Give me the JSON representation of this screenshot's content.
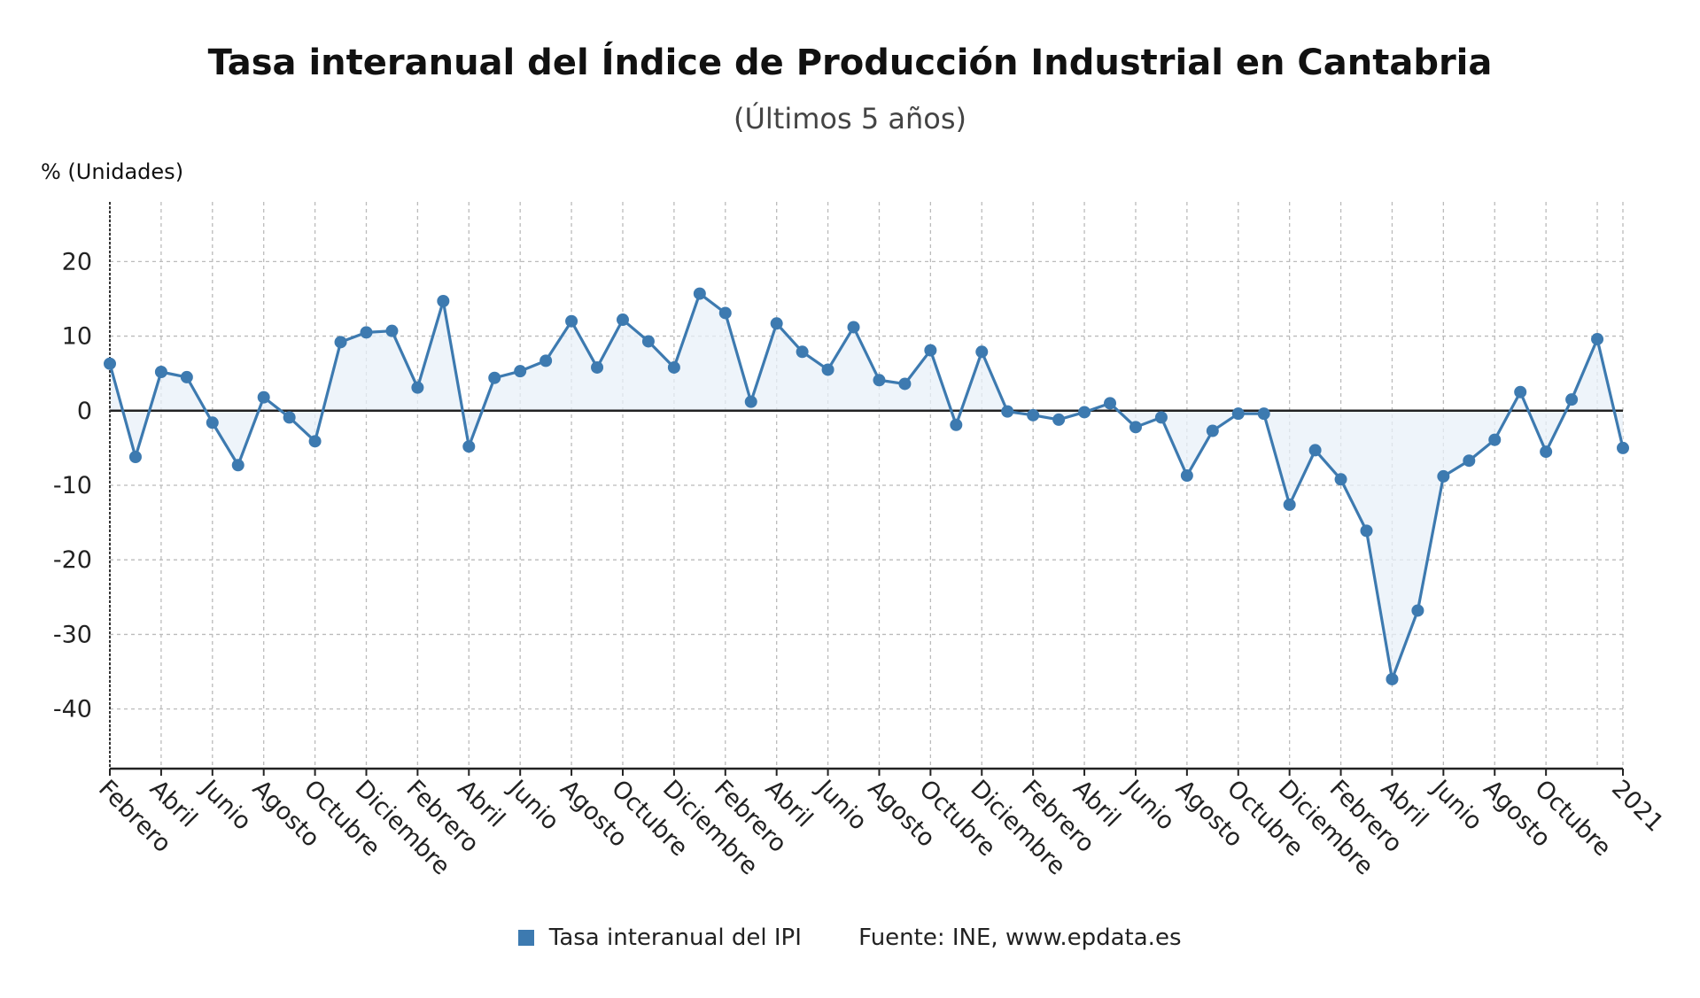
{
  "title": "Tasa interanual del Índice de Producción Industrial en Cantabria",
  "subtitle": "(Últimos 5 años)",
  "unit_label": "% (Unidades)",
  "legend": {
    "series_label": "Tasa interanual del IPI",
    "source_label": "Fuente: INE, www.epdata.es"
  },
  "colors": {
    "series": "#3d7ab0",
    "fill": "#e8f0f8",
    "zero_line": "#222222",
    "grid": "#bbbbbb"
  },
  "chart_data": {
    "type": "line",
    "title": "Tasa interanual del Índice de Producción Industrial en Cantabria",
    "subtitle": "(Últimos 5 años)",
    "ylabel": "% (Unidades)",
    "ylim": [
      -48,
      28
    ],
    "yticks": [
      20,
      10,
      0,
      -10,
      -20,
      -30,
      -40
    ],
    "grid": true,
    "legend_position": "bottom",
    "x_tick_labels": [
      "Febrero",
      "Abril",
      "Junio",
      "Agosto",
      "Octubre",
      "Diciembre",
      "Febrero",
      "Abril",
      "Junio",
      "Agosto",
      "Octubre",
      "Diciembre",
      "Febrero",
      "Abril",
      "Junio",
      "Agosto",
      "Octubre",
      "Diciembre",
      "Febrero",
      "Abril",
      "Junio",
      "Agosto",
      "Octubre",
      "Diciembre",
      "Febrero",
      "Abril",
      "Junio",
      "Agosto",
      "Octubre",
      "2021"
    ],
    "series": [
      {
        "name": "Tasa interanual del IPI",
        "values": [
          6.3,
          -6.2,
          5.2,
          4.5,
          -1.6,
          -7.3,
          1.8,
          -0.9,
          -4.1,
          9.2,
          10.5,
          10.7,
          3.1,
          14.7,
          -4.8,
          4.4,
          5.3,
          6.7,
          12.0,
          5.8,
          12.2,
          9.3,
          5.8,
          15.7,
          13.1,
          1.2,
          11.7,
          7.9,
          5.5,
          11.2,
          4.1,
          3.6,
          8.1,
          -1.9,
          7.9,
          -0.1,
          -0.6,
          -1.2,
          -0.2,
          1.0,
          -2.2,
          -0.9,
          -8.7,
          -2.7,
          -0.4,
          -0.4,
          -12.6,
          -5.3,
          -9.2,
          -16.1,
          -36.0,
          -26.8,
          -8.8,
          -6.7,
          -3.9,
          2.5,
          -5.5,
          1.5,
          9.6,
          -5.0
        ]
      }
    ]
  }
}
